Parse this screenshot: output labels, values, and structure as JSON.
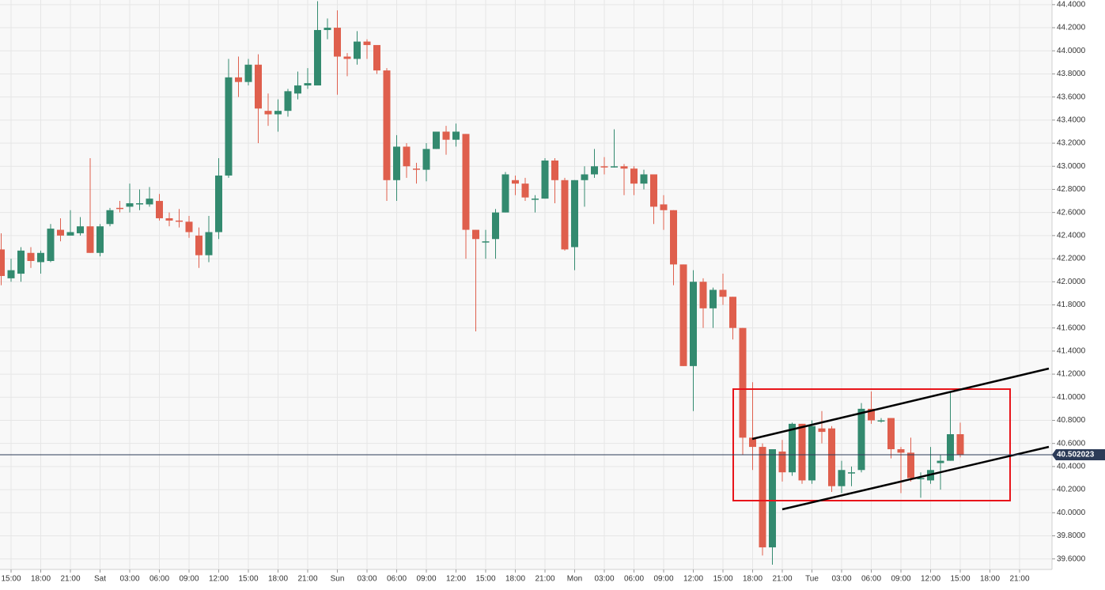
{
  "chart_data": {
    "type": "candlestick",
    "categories": [
      "15:00",
      "18:00",
      "21:00",
      "Sat",
      "03:00",
      "06:00",
      "09:00",
      "12:00",
      "15:00",
      "18:00",
      "21:00",
      "Sun",
      "03:00",
      "06:00",
      "09:00",
      "12:00",
      "15:00",
      "18:00",
      "21:00",
      "Mon",
      "03:00",
      "06:00",
      "09:00",
      "12:00",
      "15:00",
      "18:00",
      "21:00",
      "Tue",
      "03:00",
      "06:00",
      "09:00",
      "12:00",
      "15:00",
      "18:00",
      "21:00"
    ],
    "open": [
      42.28,
      42.03,
      42.07,
      42.25,
      42.17,
      42.18,
      42.45,
      42.4,
      42.42,
      42.48,
      42.25,
      42.5,
      42.64,
      42.65,
      42.68,
      42.67,
      42.7,
      42.55,
      42.53,
      42.52,
      42.4,
      42.23,
      42.43,
      42.92,
      43.77,
      43.73,
      43.88,
      43.48,
      43.45,
      43.48,
      43.63,
      43.7,
      43.7,
      44.18,
      44.2,
      43.95,
      43.93,
      44.08,
      44.05,
      43.83,
      42.88,
      43.17,
      42.98,
      42.97,
      43.15,
      43.3,
      43.23,
      43.28,
      42.45,
      42.35,
      42.37,
      42.6,
      42.88,
      42.85,
      42.72,
      42.72,
      43.05,
      42.88,
      42.3,
      42.88,
      42.93,
      43.0,
      42.99,
      43.0,
      42.98,
      42.85,
      42.93,
      42.67,
      42.62,
      42.15,
      41.27,
      42.0,
      41.77,
      41.93,
      41.87,
      41.6,
      40.65,
      40.57,
      39.7,
      40.53,
      40.35,
      40.77,
      40.28,
      40.73,
      40.73,
      40.23,
      40.35,
      40.37,
      40.9,
      40.8,
      40.82,
      40.55,
      40.52,
      40.3,
      40.28,
      40.43,
      40.45,
      40.68
    ],
    "high": [
      42.42,
      42.2,
      42.3,
      42.3,
      42.27,
      42.5,
      42.55,
      42.62,
      42.56,
      43.07,
      42.5,
      42.64,
      42.7,
      42.85,
      42.8,
      42.82,
      42.76,
      42.6,
      42.63,
      42.57,
      42.47,
      42.57,
      43.07,
      43.93,
      43.95,
      43.93,
      43.97,
      43.63,
      43.58,
      43.67,
      43.82,
      43.85,
      44.43,
      44.28,
      44.35,
      43.98,
      44.17,
      44.1,
      44.05,
      43.85,
      43.27,
      43.2,
      43.03,
      43.2,
      43.3,
      43.35,
      43.37,
      43.28,
      42.45,
      42.45,
      42.63,
      42.95,
      42.92,
      42.9,
      42.75,
      43.07,
      43.07,
      42.9,
      42.88,
      43.0,
      43.15,
      43.08,
      43.32,
      43.02,
      43.0,
      42.97,
      42.93,
      42.75,
      42.62,
      42.15,
      42.1,
      42.03,
      41.95,
      42.07,
      41.87,
      41.6,
      41.13,
      40.6,
      40.55,
      40.63,
      40.78,
      40.77,
      40.8,
      40.88,
      40.75,
      40.45,
      40.4,
      40.95,
      41.05,
      40.82,
      40.82,
      40.57,
      40.65,
      40.35,
      40.57,
      40.5,
      41.05,
      40.78
    ],
    "low": [
      41.97,
      42.0,
      42.0,
      42.12,
      42.07,
      42.17,
      42.35,
      42.4,
      42.4,
      42.25,
      42.22,
      42.48,
      42.6,
      42.6,
      42.62,
      42.65,
      42.53,
      42.48,
      42.47,
      42.38,
      42.12,
      42.17,
      42.37,
      42.9,
      43.6,
      43.7,
      43.2,
      43.35,
      43.3,
      43.43,
      43.58,
      43.67,
      43.7,
      44.1,
      43.62,
      43.78,
      43.88,
      43.93,
      43.8,
      42.7,
      42.7,
      42.9,
      42.85,
      42.87,
      43.15,
      43.1,
      43.17,
      42.2,
      41.57,
      42.2,
      42.2,
      42.6,
      42.75,
      42.7,
      42.6,
      42.72,
      42.68,
      42.27,
      42.1,
      42.65,
      42.9,
      42.93,
      42.99,
      42.75,
      42.75,
      42.8,
      42.5,
      42.45,
      41.97,
      41.27,
      40.88,
      41.6,
      41.6,
      41.8,
      41.5,
      40.5,
      40.37,
      39.63,
      39.55,
      40.27,
      40.32,
      40.25,
      40.25,
      40.6,
      40.18,
      40.17,
      40.23,
      40.35,
      40.77,
      40.78,
      40.47,
      40.17,
      40.27,
      40.13,
      40.25,
      40.2,
      40.45,
      40.48
    ],
    "close": [
      42.05,
      42.1,
      42.27,
      42.18,
      42.25,
      42.46,
      42.4,
      42.43,
      42.48,
      42.25,
      42.48,
      42.62,
      42.63,
      42.68,
      42.68,
      42.72,
      42.55,
      42.53,
      42.52,
      42.43,
      42.23,
      42.43,
      42.92,
      43.77,
      43.73,
      43.88,
      43.5,
      43.45,
      43.48,
      43.65,
      43.7,
      43.72,
      44.18,
      44.2,
      43.95,
      43.93,
      44.08,
      44.05,
      43.83,
      42.88,
      43.17,
      43.0,
      42.97,
      43.15,
      43.3,
      43.23,
      43.3,
      42.45,
      42.37,
      42.35,
      42.6,
      42.93,
      42.85,
      42.73,
      42.72,
      43.05,
      42.88,
      42.28,
      42.88,
      42.93,
      43.0,
      42.99,
      43.0,
      42.98,
      42.85,
      42.93,
      42.65,
      42.62,
      42.15,
      41.27,
      42.0,
      41.77,
      41.93,
      41.87,
      41.6,
      40.65,
      40.57,
      39.7,
      40.55,
      40.35,
      40.77,
      40.28,
      40.75,
      40.7,
      40.23,
      40.37,
      40.35,
      40.9,
      40.8,
      40.8,
      40.55,
      40.52,
      40.3,
      40.3,
      40.37,
      40.45,
      40.68,
      40.5
    ],
    "up_color": "#338a6f",
    "down_color": "#df5f4d",
    "ylim": [
      39.55,
      44.44
    ],
    "yticks": [
      {
        "value": 39.6,
        "label": "39.6000"
      },
      {
        "value": 39.8,
        "label": "39.8000"
      },
      {
        "value": 40.0,
        "label": "40.0000"
      },
      {
        "value": 40.2,
        "label": "40.2000"
      },
      {
        "value": 40.4,
        "label": "40.4000"
      },
      {
        "value": 40.6,
        "label": "40.6000"
      },
      {
        "value": 40.8,
        "label": "40.8000"
      },
      {
        "value": 41.0,
        "label": "41.0000"
      },
      {
        "value": 41.2,
        "label": "41.2000"
      },
      {
        "value": 41.4,
        "label": "41.4000"
      },
      {
        "value": 41.6,
        "label": "41.6000"
      },
      {
        "value": 41.8,
        "label": "41.8000"
      },
      {
        "value": 42.0,
        "label": "42.0000"
      },
      {
        "value": 42.2,
        "label": "42.2000"
      },
      {
        "value": 42.4,
        "label": "42.4000"
      },
      {
        "value": 42.6,
        "label": "42.6000"
      },
      {
        "value": 42.8,
        "label": "42.8000"
      },
      {
        "value": 43.0,
        "label": "43.0000"
      },
      {
        "value": 43.2,
        "label": "43.2000"
      },
      {
        "value": 43.4,
        "label": "43.4000"
      },
      {
        "value": 43.6,
        "label": "43.6000"
      },
      {
        "value": 43.8,
        "label": "43.8000"
      },
      {
        "value": 44.0,
        "label": "44.0000"
      },
      {
        "value": 44.2,
        "label": "44.2000"
      },
      {
        "value": 44.4,
        "label": "44.4000"
      }
    ],
    "grid": true,
    "last_price": 40.502023,
    "last_price_color": "#2c3b57"
  }
}
